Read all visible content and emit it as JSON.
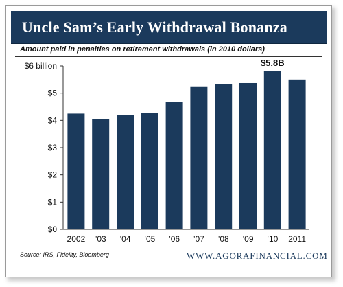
{
  "banner": {
    "title": "Uncle Sam’s Early Withdrawal Bonanza"
  },
  "subtitle": "Amount paid in penalties on retirement withdrawals (in 2010 dollars)",
  "chart_data": {
    "type": "bar",
    "title": "Uncle Sam’s Early Withdrawal Bonanza",
    "subtitle": "Amount paid in penalties on retirement withdrawals (in 2010 dollars)",
    "categories": [
      "2002",
      "’03",
      "’04",
      "’05",
      "’06",
      "’07",
      "’08",
      "’09",
      "’10",
      "2011"
    ],
    "values": [
      4.25,
      4.05,
      4.2,
      4.28,
      4.68,
      5.25,
      5.33,
      5.37,
      5.8,
      5.5
    ],
    "ylim": [
      0,
      6
    ],
    "yticks": [
      {
        "value": 0,
        "label": "$0"
      },
      {
        "value": 1,
        "label": "$1"
      },
      {
        "value": 2,
        "label": "$2"
      },
      {
        "value": 3,
        "label": "$3"
      },
      {
        "value": 4,
        "label": "$4"
      },
      {
        "value": 5,
        "label": "$5"
      },
      {
        "value": 6,
        "label": "$6 billion"
      }
    ],
    "annotations": [
      {
        "category": "’10",
        "text": "$5.8B"
      }
    ],
    "grid": false,
    "colors": {
      "bar": "#1b3a5c",
      "axis": "#333333",
      "text": "#111111"
    }
  },
  "footer": {
    "source": "Source: IRS, Fidelity, Bloomberg",
    "website": "WWW.AGORAFINANCIAL.COM"
  }
}
